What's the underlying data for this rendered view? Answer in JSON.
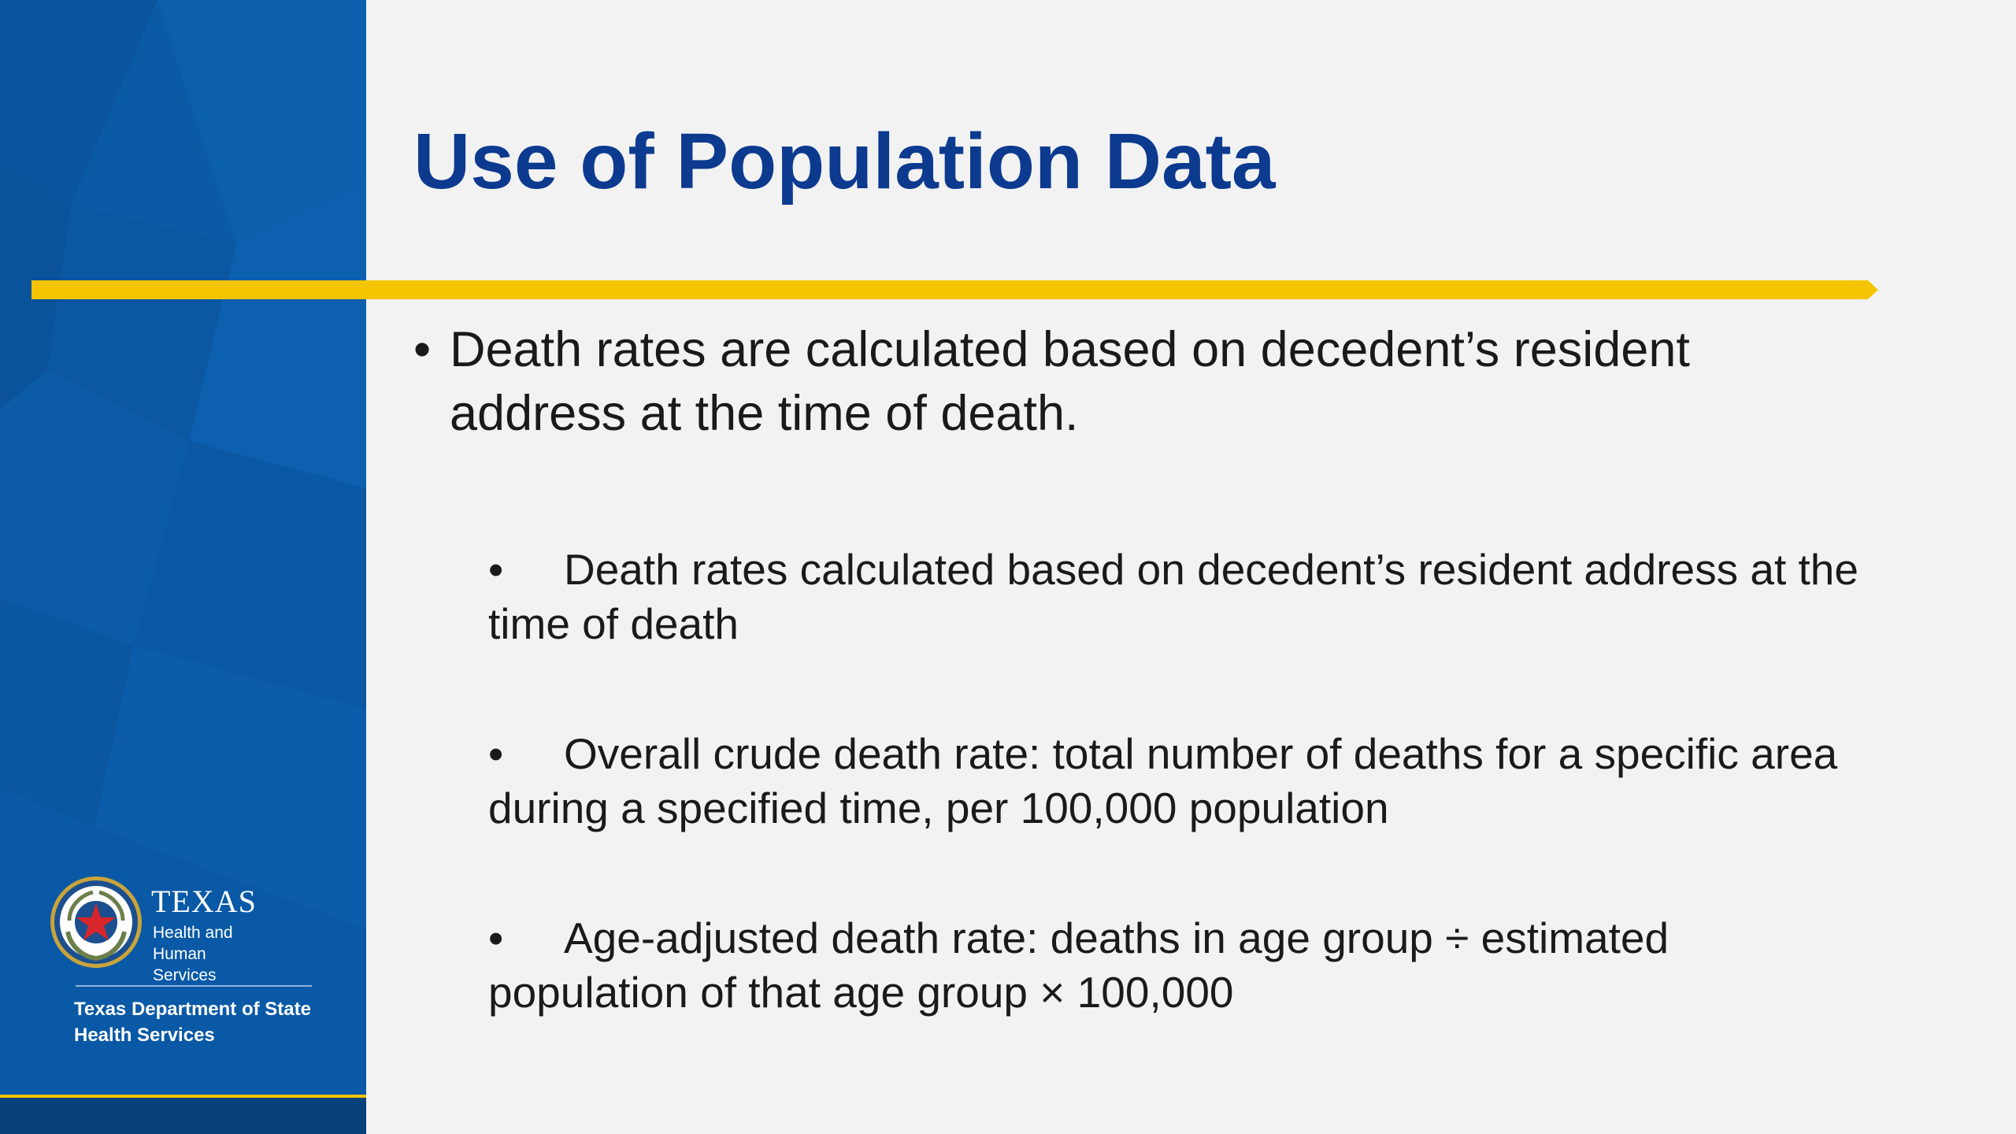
{
  "colors": {
    "sidebar_blue": "#0a5aa6",
    "title_blue": "#0c3a8f",
    "accent_gold": "#f5c400",
    "background": "#f2f2f2",
    "text": "#1a1a1a"
  },
  "slide": {
    "title": "Use of Population Data",
    "main_bullet": "Death rates are calculated based on decedent’s resident address at the time of death.",
    "bullet_glyph": "•",
    "sub_bullets": [
      "Death rates calculated based on decedent’s resident address at the time of death",
      "Overall crude death rate: total number of deaths for a specific area during a specified time, per 100,000 population",
      "Age-adjusted death rate: deaths in age group ÷ estimated population of that age group × 100,000"
    ]
  },
  "logo": {
    "icon": "texas-seal-icon",
    "wordmark": "TEXAS",
    "hhs_line1": "Health and Human",
    "hhs_line2": "Services",
    "dshs_line1": "Texas Department of State",
    "dshs_line2": "Health Services"
  }
}
